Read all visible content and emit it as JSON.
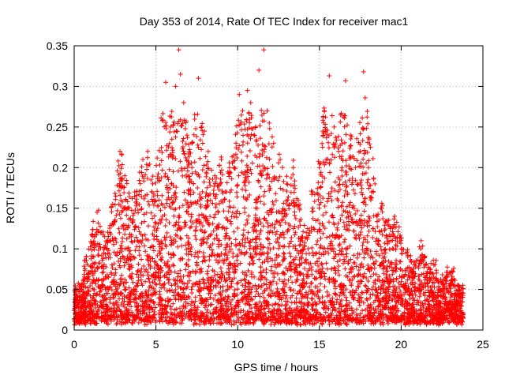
{
  "chart_data": {
    "type": "scatter",
    "title": "Day 353 of 2014, Rate Of TEC Index for receiver mac1",
    "xlabel": "GPS time / hours",
    "ylabel": "ROTI / TECUs",
    "xlim": [
      0,
      25
    ],
    "ylim": [
      0,
      0.35
    ],
    "x_ticks": [
      0,
      5,
      10,
      15,
      20,
      25
    ],
    "y_ticks": [
      0,
      0.05,
      0.1,
      0.15,
      0.2,
      0.25,
      0.3,
      0.35
    ],
    "x_tick_labels": [
      "0",
      "5",
      "10",
      "15",
      "20",
      "25"
    ],
    "y_tick_labels": [
      "0",
      "0.05",
      "0.1",
      "0.15",
      "0.2",
      "0.25",
      "0.3",
      "0.35"
    ],
    "grid": true,
    "marker": "+",
    "color": "#ff0000",
    "series": [
      {
        "name": "ROTI",
        "points": [
          [
            0.1,
            0.02
          ],
          [
            0.3,
            0.05
          ],
          [
            0.5,
            0.04
          ],
          [
            0.8,
            0.06
          ],
          [
            1.0,
            0.03
          ],
          [
            1.2,
            0.09
          ],
          [
            1.4,
            0.145
          ],
          [
            1.6,
            0.12
          ],
          [
            2.0,
            0.1
          ],
          [
            2.4,
            0.13
          ],
          [
            2.8,
            0.22
          ],
          [
            3.1,
            0.19
          ],
          [
            3.3,
            0.15
          ],
          [
            3.7,
            0.17
          ],
          [
            4.2,
            0.21
          ],
          [
            4.5,
            0.22
          ],
          [
            4.8,
            0.18
          ],
          [
            5.2,
            0.16
          ],
          [
            5.4,
            0.14
          ],
          [
            5.6,
            0.305
          ],
          [
            5.9,
            0.25
          ],
          [
            6.2,
            0.3
          ],
          [
            6.4,
            0.345
          ],
          [
            6.5,
            0.315
          ],
          [
            6.7,
            0.28
          ],
          [
            6.9,
            0.24
          ],
          [
            7.2,
            0.2
          ],
          [
            7.6,
            0.31
          ],
          [
            7.8,
            0.25
          ],
          [
            8.2,
            0.22
          ],
          [
            8.6,
            0.19
          ],
          [
            9.0,
            0.21
          ],
          [
            9.5,
            0.2
          ],
          [
            9.9,
            0.23
          ],
          [
            10.1,
            0.29
          ],
          [
            10.3,
            0.27
          ],
          [
            10.6,
            0.295
          ],
          [
            10.8,
            0.28
          ],
          [
            11.0,
            0.24
          ],
          [
            11.3,
            0.32
          ],
          [
            11.6,
            0.345
          ],
          [
            11.8,
            0.27
          ],
          [
            12.2,
            0.23
          ],
          [
            12.6,
            0.21
          ],
          [
            13.0,
            0.18
          ],
          [
            13.4,
            0.2
          ],
          [
            13.8,
            0.15
          ],
          [
            14.2,
            0.12
          ],
          [
            14.6,
            0.17
          ],
          [
            15.0,
            0.2
          ],
          [
            15.3,
            0.27
          ],
          [
            15.6,
            0.313
          ],
          [
            15.9,
            0.25
          ],
          [
            16.3,
            0.265
          ],
          [
            16.6,
            0.307
          ],
          [
            16.9,
            0.24
          ],
          [
            17.2,
            0.2
          ],
          [
            17.5,
            0.22
          ],
          [
            17.7,
            0.318
          ],
          [
            17.8,
            0.286
          ],
          [
            18.0,
            0.2
          ],
          [
            18.3,
            0.17
          ],
          [
            18.8,
            0.15
          ],
          [
            19.2,
            0.13
          ],
          [
            19.6,
            0.14
          ],
          [
            20.0,
            0.1
          ],
          [
            20.4,
            0.09
          ],
          [
            20.8,
            0.08
          ],
          [
            21.2,
            0.1
          ],
          [
            21.6,
            0.07
          ],
          [
            22.0,
            0.08
          ],
          [
            22.5,
            0.06
          ],
          [
            23.0,
            0.07
          ],
          [
            23.5,
            0.05
          ],
          [
            23.7,
            0.04
          ]
        ]
      }
    ]
  }
}
